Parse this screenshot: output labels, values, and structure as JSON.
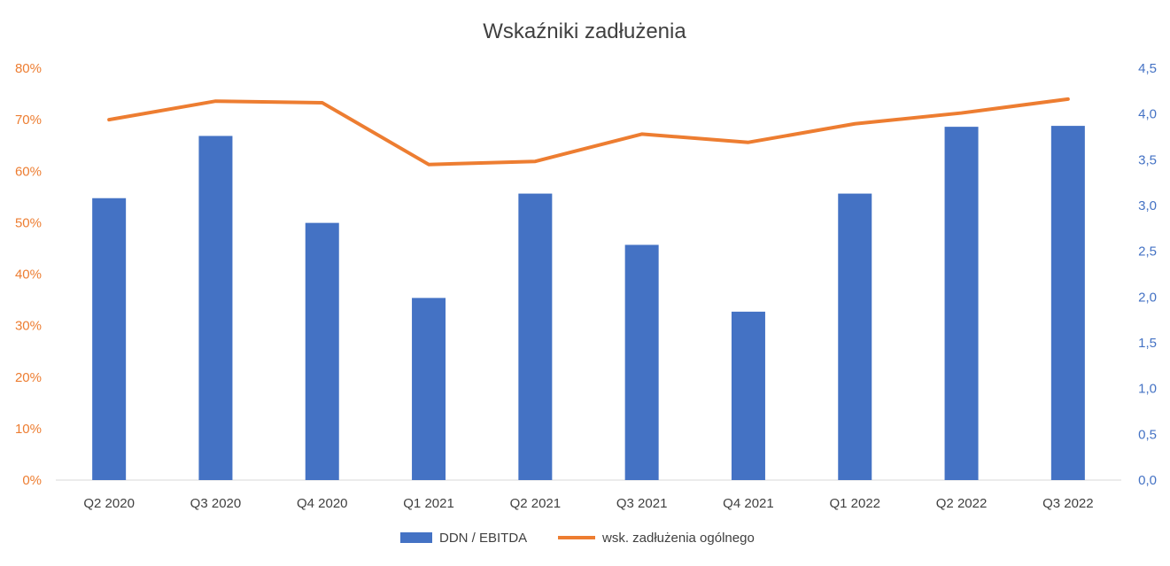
{
  "chart_data": {
    "type": "bar",
    "title": "Wskaźniki zadłużenia",
    "categories": [
      "Q2 2020",
      "Q3 2020",
      "Q4 2020",
      "Q1 2021",
      "Q2 2021",
      "Q3 2021",
      "Q4 2021",
      "Q1 2022",
      "Q2 2022",
      "Q3 2022"
    ],
    "series": [
      {
        "name": "DDN / EBITDA",
        "type": "bar",
        "axis": "right",
        "color": "#4472C4",
        "values": [
          3.08,
          3.76,
          2.81,
          1.99,
          3.13,
          2.57,
          1.84,
          3.13,
          3.86,
          3.87
        ]
      },
      {
        "name": "wsk. zadłużenia ogólnego",
        "type": "line",
        "axis": "left",
        "color": "#ED7D31",
        "values": [
          70.0,
          73.6,
          73.3,
          61.3,
          61.9,
          67.2,
          65.6,
          69.2,
          71.3,
          74.0
        ]
      }
    ],
    "y_left": {
      "ylim": [
        0,
        80
      ],
      "ticks": [
        0,
        10,
        20,
        30,
        40,
        50,
        60,
        70,
        80
      ],
      "tick_labels": [
        "0%",
        "10%",
        "20%",
        "30%",
        "40%",
        "50%",
        "60%",
        "70%",
        "80%"
      ],
      "color": "#ED7D31"
    },
    "y_right": {
      "ylim": [
        0,
        4.5
      ],
      "ticks": [
        0,
        0.5,
        1,
        1.5,
        2,
        2.5,
        3,
        3.5,
        4,
        4.5
      ],
      "tick_labels": [
        "0,0",
        "0,5",
        "1,0",
        "1,5",
        "2,0",
        "2,5",
        "3,0",
        "3,5",
        "4,0",
        "4,5"
      ],
      "color": "#4472C4"
    },
    "grid": false,
    "legend": "bottom"
  }
}
